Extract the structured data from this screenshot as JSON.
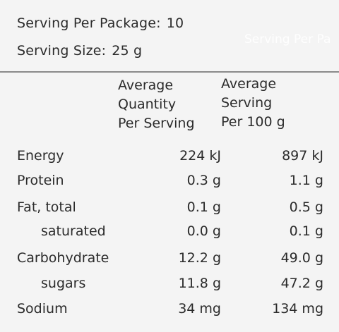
{
  "header": {
    "serving_per_package_label": "Serving Per Package:",
    "serving_per_package_value": "10",
    "serving_size_label": "Serving Size:",
    "serving_size_value": "25 g",
    "ghost_text": "Serving Per Pa"
  },
  "columns": {
    "avg_per_serving": [
      "Average",
      "Quantity",
      "Per Serving"
    ],
    "avg_per_100g": [
      "Average",
      "Serving",
      "Per 100 g"
    ]
  },
  "rows": [
    {
      "label": "Energy",
      "per_serving": "224 kJ",
      "per_100g": "897 kJ",
      "indent": false
    },
    {
      "label": "Protein",
      "per_serving": "0.3 g",
      "per_100g": "1.1 g",
      "indent": false
    },
    {
      "label": "Fat, total",
      "per_serving": "0.1 g",
      "per_100g": "0.5 g",
      "indent": false
    },
    {
      "label": "saturated",
      "per_serving": "0.0 g",
      "per_100g": "0.1 g",
      "indent": true
    },
    {
      "label": "Carbohydrate",
      "per_serving": "12.2 g",
      "per_100g": "49.0 g",
      "indent": false
    },
    {
      "label": "sugars",
      "per_serving": "11.8 g",
      "per_100g": "47.2 g",
      "indent": true
    },
    {
      "label": "Sodium",
      "per_serving": "34 mg",
      "per_100g": "134 mg",
      "indent": false
    }
  ]
}
